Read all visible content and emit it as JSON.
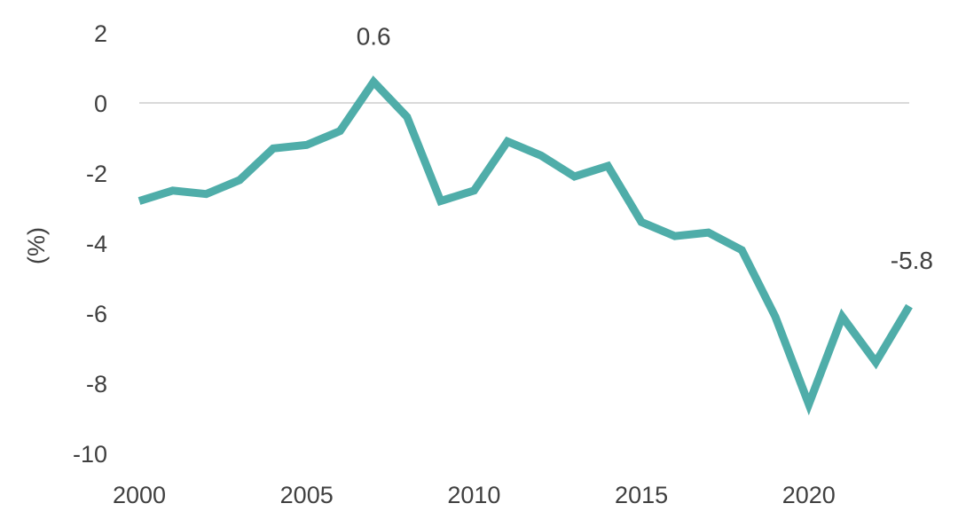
{
  "chart_data": {
    "type": "line",
    "ylabel": "(%)",
    "xlim": [
      2000,
      2023
    ],
    "ylim": [
      -10,
      2
    ],
    "x_ticks": [
      "2000",
      "2005",
      "2010",
      "2015",
      "2020"
    ],
    "y_ticks": [
      "2",
      "0",
      "-2",
      "-4",
      "-6",
      "-8",
      "-10"
    ],
    "grid": "zero-line only",
    "line_color": "#4FADA9",
    "zero_line_color": "#D9D9D9",
    "series": [
      {
        "x": [
          2000,
          2001,
          2002,
          2003,
          2004,
          2005,
          2006,
          2007,
          2008,
          2009,
          2010,
          2011,
          2012,
          2013,
          2014,
          2015,
          2016,
          2017,
          2018,
          2019,
          2020,
          2021,
          2022,
          2023
        ],
        "values": [
          -2.8,
          -2.5,
          -2.6,
          -2.2,
          -1.3,
          -1.2,
          -0.8,
          0.6,
          -0.4,
          -2.8,
          -2.5,
          -1.1,
          -1.5,
          -2.1,
          -1.8,
          -3.4,
          -3.8,
          -3.7,
          -4.2,
          -6.1,
          -8.6,
          -6.1,
          -7.4,
          -5.8
        ]
      }
    ],
    "annotations": [
      {
        "x": 2007,
        "y": 0.6,
        "text": "0.6"
      },
      {
        "x": 2023,
        "y": -5.8,
        "text": "-5.8"
      }
    ]
  }
}
